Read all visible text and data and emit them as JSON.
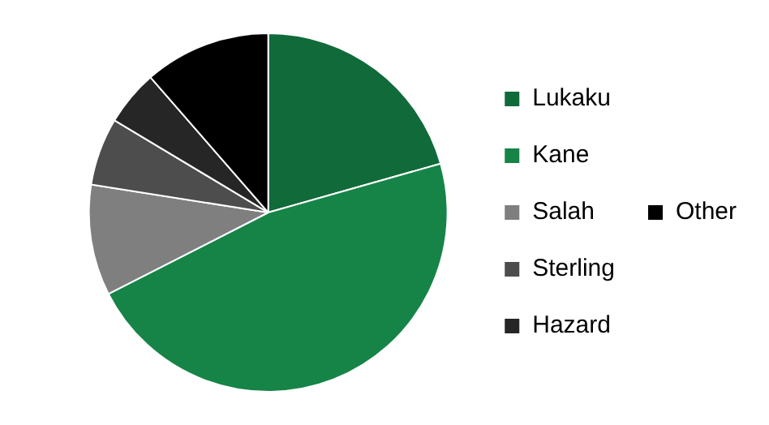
{
  "chart_data": {
    "type": "pie",
    "categories": [
      "Lukaku",
      "Kane",
      "Salah",
      "Sterling",
      "Hazard",
      "Other"
    ],
    "values": [
      20.6,
      46.9,
      10.0,
      6.1,
      5.0,
      11.4
    ],
    "colors": [
      "#116a3a",
      "#168447",
      "#7f7f7f",
      "#4d4d4d",
      "#262626",
      "#000000"
    ],
    "legend": "right"
  }
}
